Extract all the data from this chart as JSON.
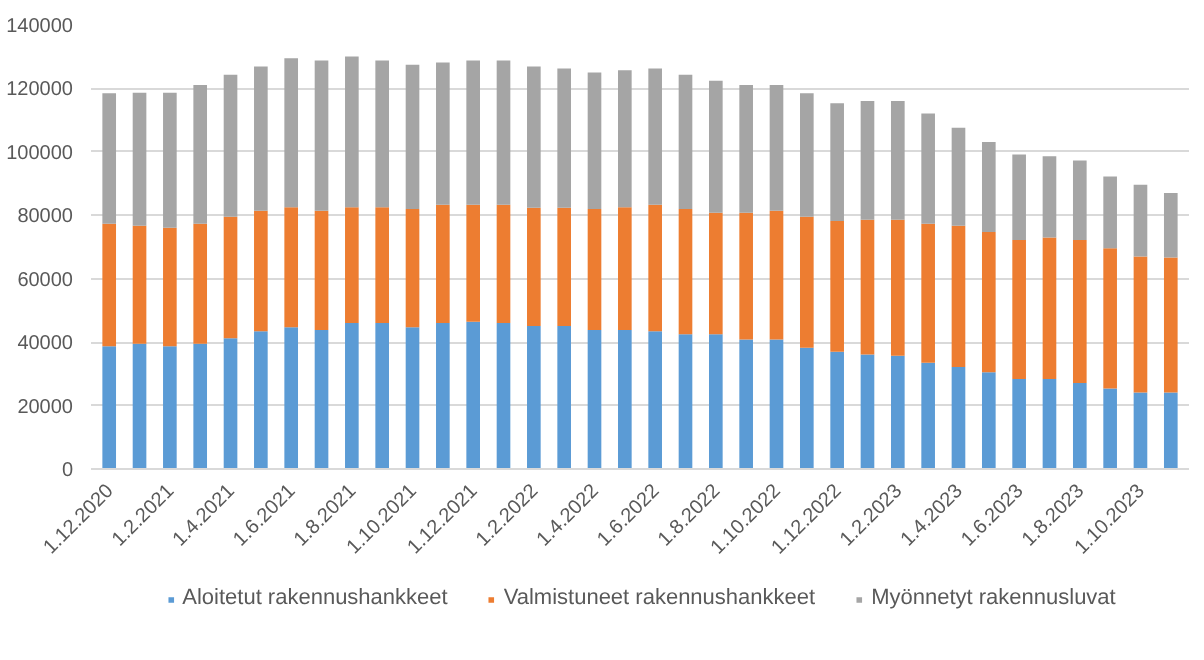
{
  "chart_data": {
    "type": "bar",
    "stacked": true,
    "categories": [
      "1.12.2020",
      null,
      "1.2.2021",
      null,
      "1.4.2021",
      null,
      "1.6.2021",
      null,
      "1.8.2021",
      null,
      "1.10.2021",
      null,
      "1.12.2021",
      null,
      "1.2.2022",
      null,
      "1.4.2022",
      null,
      "1.6.2022",
      null,
      "1.8.2022",
      null,
      "1.10.2022",
      null,
      "1.12.2022",
      null,
      "1.2.2023",
      null,
      "1.4.2023",
      null,
      "1.6.2023",
      null,
      "1.8.2023",
      null,
      "1.10.2023",
      null
    ],
    "series": [
      {
        "name": "Aloitetut rakennushankkeet",
        "color": "#5b9bd5",
        "values": [
          38700,
          39500,
          38700,
          39500,
          41200,
          43400,
          44700,
          43800,
          46000,
          46000,
          44700,
          46000,
          46400,
          46000,
          45100,
          45100,
          43800,
          43800,
          43400,
          42500,
          42500,
          40800,
          40800,
          38200,
          37000,
          36100,
          35700,
          33500,
          32200,
          30500,
          28400,
          28400,
          27100,
          25400,
          24100,
          24100
        ]
      },
      {
        "name": "Valmistuneet rakennushankkeet",
        "color": "#ed7d31",
        "values": [
          38600,
          37200,
          37400,
          37800,
          38300,
          38000,
          37800,
          37600,
          36500,
          36500,
          37300,
          37300,
          36900,
          37300,
          37300,
          37300,
          38200,
          38700,
          39900,
          39500,
          38300,
          40000,
          40600,
          41300,
          41200,
          42500,
          42900,
          43800,
          44500,
          44200,
          43800,
          44600,
          45100,
          44200,
          42900,
          42600
        ]
      },
      {
        "name": "Myönnetyt rakennusluvat",
        "color": "#a5a5a5",
        "values": [
          41200,
          41900,
          42500,
          43800,
          44800,
          45500,
          47000,
          47400,
          47600,
          46300,
          45500,
          44900,
          45500,
          45500,
          44500,
          43900,
          43000,
          43200,
          43000,
          42300,
          41600,
          40300,
          39700,
          39000,
          37100,
          37400,
          37400,
          34800,
          30900,
          28400,
          27000,
          25600,
          25100,
          22600,
          22600,
          20300
        ]
      }
    ],
    "ylim": [
      0,
      140000
    ],
    "yticks": [
      0,
      20000,
      40000,
      60000,
      80000,
      100000,
      120000,
      140000
    ],
    "grid": "y",
    "legend": "bottom"
  }
}
